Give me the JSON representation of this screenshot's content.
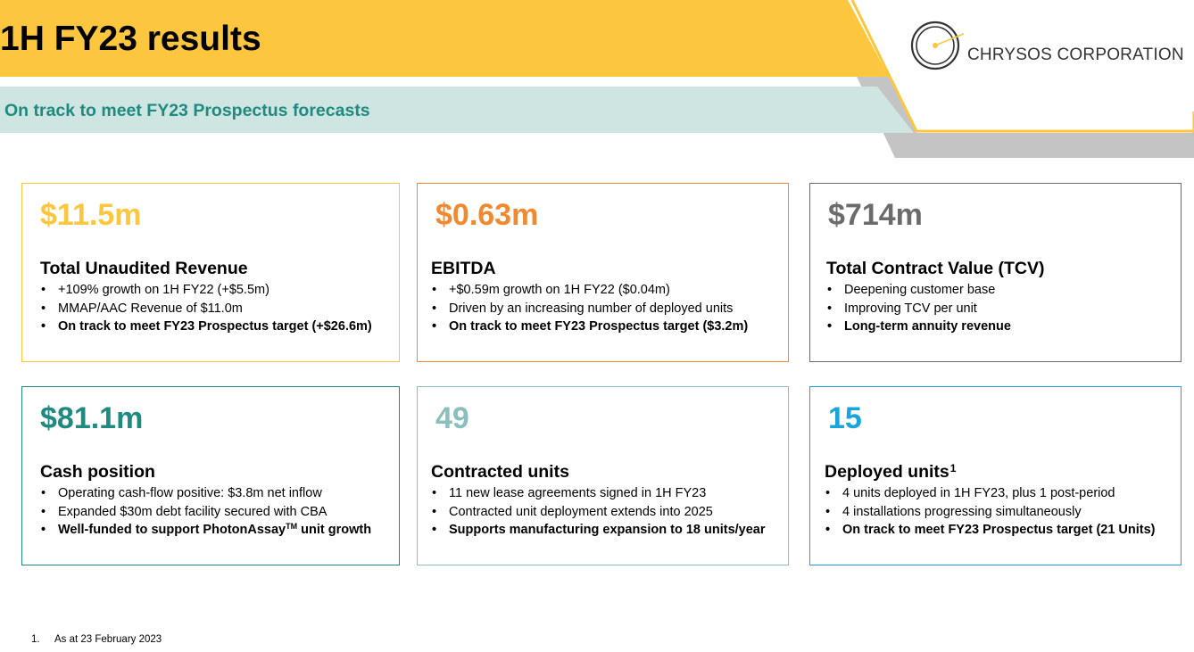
{
  "header": {
    "title": "1H FY23 results",
    "subtitle": "On track to meet FY23 Prospectus forecasts"
  },
  "logo": {
    "text": "CHRYSOS CORPORATION",
    "icon": "chrysos-ring-logo"
  },
  "colors": {
    "yellow": "#fcc63f",
    "orange": "#f0892f",
    "grey": "#6b6b6b",
    "teal": "#1f8a80",
    "light_teal": "#8bbfbd",
    "cyan": "#1aa3dd",
    "subtitle_band": "#cfe5e2"
  },
  "cards": [
    {
      "value": "$11.5m",
      "heading": "Total Unaudited Revenue",
      "bullets": [
        "+109% growth on 1H FY22 (+$5.5m)",
        "MMAP/AAC Revenue of $11.0m",
        "On track to meet FY23 Prospectus target (+$26.6m)"
      ]
    },
    {
      "value": "$0.63m",
      "heading": "EBITDA",
      "bullets": [
        "+$0.59m growth on 1H FY22 ($0.04m)",
        "Driven by an increasing number of deployed units",
        "On track to meet FY23 Prospectus target ($3.2m)"
      ]
    },
    {
      "value": "$714m",
      "heading": "Total Contract Value (TCV)",
      "bullets": [
        "Deepening customer base",
        "Improving TCV per unit",
        "Long-term annuity revenue"
      ]
    },
    {
      "value": "$81.1m",
      "heading": "Cash position",
      "bullets": [
        "Operating cash-flow positive: $3.8m net inflow",
        "Expanded $30m debt facility secured with CBA",
        "Well-funded to support PhotonAssay",
        "TM",
        "unit growth"
      ]
    },
    {
      "value": "49",
      "heading": "Contracted units",
      "bullets": [
        "11 new lease agreements signed in 1H FY23",
        "Contracted unit deployment extends into 2025",
        "Supports manufacturing expansion to 18 units/year"
      ]
    },
    {
      "value": "15",
      "heading": "Deployed units",
      "heading_sup": "1",
      "bullets": [
        "4 units deployed in 1H FY23, plus 1 post-period",
        "4 installations progressing simultaneously",
        "On track to meet FY23 Prospectus target (21 Units)"
      ]
    }
  ],
  "footnote": {
    "number": "1.",
    "text": "As at 23 February 2023"
  }
}
